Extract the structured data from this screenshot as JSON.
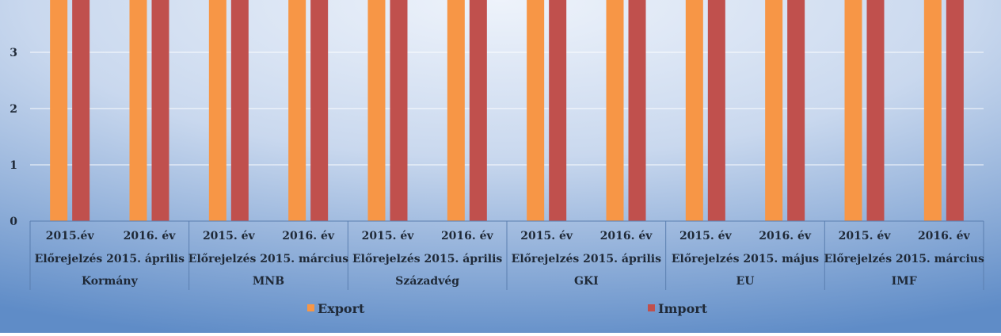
{
  "chart_data": {
    "type": "bar",
    "ylim": [
      0,
      4
    ],
    "yticks": [
      0,
      1,
      2,
      3
    ],
    "grid": true,
    "legend_position": "bottom",
    "series": [
      {
        "name": "Export",
        "color": "#f79646",
        "values": [
          4,
          4,
          4,
          4,
          4,
          4,
          4,
          4,
          4,
          4,
          4,
          4
        ]
      },
      {
        "name": "Import",
        "color": "#c0504d",
        "values": [
          4,
          4,
          4,
          4,
          4,
          4,
          4,
          4,
          4,
          4,
          4,
          4
        ]
      }
    ],
    "categories": [
      {
        "year": "2015.év",
        "forecast": "Előrejelzés 2015. április",
        "source": "Kormány"
      },
      {
        "year": "2016. év",
        "forecast": "Előrejelzés 2015. április",
        "source": "Kormány"
      },
      {
        "year": "2015. év",
        "forecast": "Előrejelzés 2015. március",
        "source": "MNB"
      },
      {
        "year": "2016. év",
        "forecast": "Előrejelzés 2015. március",
        "source": "MNB"
      },
      {
        "year": "2015. év",
        "forecast": "Előrejelzés 2015. április",
        "source": "Századvég"
      },
      {
        "year": "2016. év",
        "forecast": "Előrejelzés 2015. április",
        "source": "Századvég"
      },
      {
        "year": "2015. év",
        "forecast": "Előrejelzés 2015. április",
        "source": "GKI"
      },
      {
        "year": "2016. év",
        "forecast": "Előrejelzés 2015. április",
        "source": "GKI"
      },
      {
        "year": "2015. év",
        "forecast": "Előrejelzés 2015. május",
        "source": "EU"
      },
      {
        "year": "2016. év",
        "forecast": "Előrejelzés 2015. május",
        "source": "EU"
      },
      {
        "year": "2015. év",
        "forecast": "Előrejelzés 2015. március",
        "source": "IMF"
      },
      {
        "year": "2016. év",
        "forecast": "Előrejelzés 2015. március",
        "source": "IMF"
      }
    ],
    "groups": [
      {
        "source": "Kormány",
        "forecast": "Előrejelzés 2015. április",
        "years": [
          "2015.év",
          "2016. év"
        ]
      },
      {
        "source": "MNB",
        "forecast": "Előrejelzés 2015. március",
        "years": [
          "2015. év",
          "2016. év"
        ]
      },
      {
        "source": "Századvég",
        "forecast": "Előrejelzés 2015. április",
        "years": [
          "2015. év",
          "2016. év"
        ]
      },
      {
        "source": "GKI",
        "forecast": "Előrejelzés 2015. április",
        "years": [
          "2015. év",
          "2016. év"
        ]
      },
      {
        "source": "EU",
        "forecast": "Előrejelzés 2015. május",
        "years": [
          "2015. év",
          "2016. év"
        ]
      },
      {
        "source": "IMF",
        "forecast": "Előrejelzés 2015. március",
        "years": [
          "2015. év",
          "2016. év"
        ]
      }
    ]
  }
}
